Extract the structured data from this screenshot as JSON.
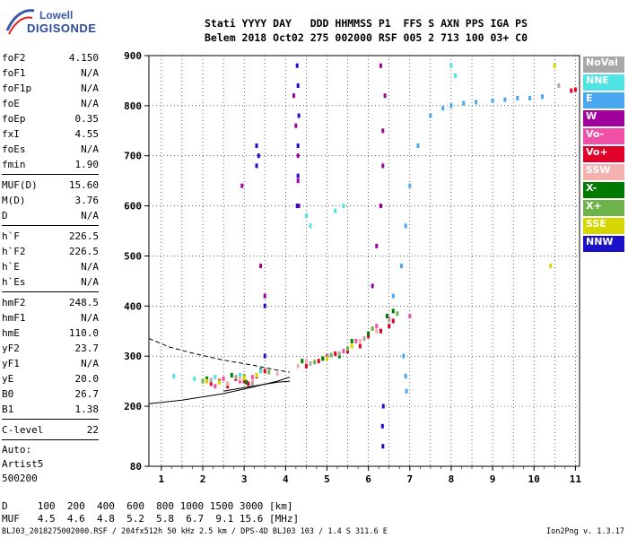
{
  "logo": {
    "line1": "Lowell",
    "line2": "DIGISONDE"
  },
  "header": {
    "row1": "Stati YYYY DAY   DDD HHMMSS P1  FFS S AXN PPS IGA PS",
    "row2": "Belem 2018 Oct02 275 002000 RSF 005 2 713 100 03+ C0"
  },
  "params": [
    {
      "key": "foF2",
      "val": "4.150"
    },
    {
      "key": "foF1",
      "val": "N/A"
    },
    {
      "key": "foF1p",
      "val": "N/A"
    },
    {
      "key": "foE",
      "val": "N/A"
    },
    {
      "key": "foEp",
      "val": "0.35"
    },
    {
      "key": "fxI",
      "val": "4.55"
    },
    {
      "key": "foEs",
      "val": "N/A"
    },
    {
      "key": "fmin",
      "val": "1.90"
    },
    {
      "key": "MUF(D)",
      "val": "15.60",
      "sep": true
    },
    {
      "key": "M(D)",
      "val": "3.76"
    },
    {
      "key": "D",
      "val": "N/A"
    },
    {
      "key": "h`F",
      "val": "226.5",
      "sep": true
    },
    {
      "key": "h`F2",
      "val": "226.5"
    },
    {
      "key": "h`E",
      "val": "N/A"
    },
    {
      "key": "h`Es",
      "val": "N/A"
    },
    {
      "key": "hmF2",
      "val": "248.5",
      "sep": true
    },
    {
      "key": "hmF1",
      "val": "N/A"
    },
    {
      "key": "hmE",
      "val": "110.0"
    },
    {
      "key": "yF2",
      "val": "23.7"
    },
    {
      "key": "yF1",
      "val": "N/A"
    },
    {
      "key": "yE",
      "val": "20.0"
    },
    {
      "key": "B0",
      "val": "26.7"
    },
    {
      "key": "B1",
      "val": "1.38"
    },
    {
      "key": "C-level",
      "val": "22",
      "sep": true
    }
  ],
  "auto": [
    "Auto:",
    "Artist5",
    "500200"
  ],
  "legend": [
    {
      "label": "NoVal",
      "color": "#a8a8a8"
    },
    {
      "label": "NNE",
      "color": "#4fe3e3"
    },
    {
      "label": "E",
      "color": "#4aa8f0"
    },
    {
      "label": "W",
      "color": "#a0009c"
    },
    {
      "label": "Vo-",
      "color": "#f04fa8"
    },
    {
      "label": "Vo+",
      "color": "#e0002a"
    },
    {
      "label": "SSW",
      "color": "#f5b0b0"
    },
    {
      "label": "X-",
      "color": "#007a00"
    },
    {
      "label": "X+",
      "color": "#6fb44a"
    },
    {
      "label": "SSE",
      "color": "#d6d600"
    },
    {
      "label": "NNW",
      "color": "#1a10c8"
    }
  ],
  "dmuf": {
    "row1": "D     100  200  400  600  800 1000 1500 3000 [km]",
    "row2": "MUF   4.5  4.6  4.8  5.2  5.8  6.7  9.1 15.6 [MHz]"
  },
  "footer": "BLJ03_2018275002000.RSF / 204fx512h 50 kHz 2.5 km / DPS-4D BLJ03 103 / 1.4 S 311.6 E",
  "version": "Ion2Png v. 1.3.17",
  "chart_data": {
    "type": "scatter",
    "xlim": [
      0.7,
      11.1
    ],
    "ylim": [
      80,
      900
    ],
    "x_ticks": [
      1,
      2,
      3,
      4,
      5,
      6,
      7,
      8,
      9,
      10,
      11
    ],
    "x_tick_labels": [
      "1",
      "2",
      "3",
      "4",
      "5",
      "6",
      "7",
      "8",
      "9",
      "10",
      "11"
    ],
    "y_ticks": [
      80,
      200,
      300,
      400,
      500,
      600,
      700,
      800,
      900
    ],
    "y_tick_labels": [
      "80",
      "200",
      "300",
      "400",
      "500",
      "600",
      "700",
      "800",
      "900"
    ],
    "grid": true,
    "curves": [
      {
        "name": "profile-solid",
        "style": "solid",
        "x": [
          0.7,
          1.5,
          2.5,
          3.2,
          3.8,
          4.1
        ],
        "y": [
          205,
          212,
          225,
          238,
          250,
          258
        ]
      },
      {
        "name": "profile-lower",
        "style": "solid",
        "x": [
          2.5,
          3.2,
          3.8,
          4.1
        ],
        "y": [
          230,
          240,
          248,
          250
        ]
      },
      {
        "name": "profile-dashed",
        "style": "dashed",
        "x": [
          0.7,
          1.2,
          1.8,
          2.5,
          3.2,
          3.8,
          4.1
        ],
        "y": [
          335,
          318,
          305,
          292,
          282,
          272,
          268
        ]
      }
    ],
    "series": [
      {
        "name": "W",
        "x": [
          4.2,
          4.25,
          4.3,
          4.3,
          4.32,
          2.95,
          3.4,
          3.5,
          6.1,
          6.2,
          6.3,
          6.35,
          6.35,
          6.4,
          6.3
        ],
        "y": [
          820,
          760,
          700,
          650,
          600,
          640,
          480,
          420,
          440,
          520,
          600,
          680,
          750,
          820,
          880
        ]
      },
      {
        "name": "NNW",
        "x": [
          4.28,
          4.3,
          4.32,
          4.3,
          4.3,
          4.28,
          3.3,
          3.35,
          3.3,
          6.35,
          6.36,
          6.34,
          3.5,
          3.5
        ],
        "y": [
          880,
          840,
          780,
          720,
          660,
          600,
          720,
          700,
          680,
          120,
          200,
          160,
          400,
          300
        ]
      },
      {
        "name": "Vo+",
        "x": [
          2.2,
          2.4,
          2.6,
          2.8,
          3.0,
          3.1,
          3.3,
          3.5,
          4.5,
          4.8,
          5.2,
          5.5,
          5.8,
          6.0,
          6.3,
          6.5,
          6.6,
          10.9,
          11.0
        ],
        "y": [
          245,
          250,
          240,
          255,
          250,
          245,
          260,
          270,
          280,
          290,
          305,
          310,
          320,
          340,
          350,
          360,
          370,
          830,
          832
        ]
      },
      {
        "name": "Vo-",
        "x": [
          2.3,
          2.5,
          2.9,
          3.2,
          4.6,
          5.0,
          5.4,
          5.7,
          6.2,
          6.5,
          7.0
        ],
        "y": [
          240,
          255,
          250,
          258,
          285,
          300,
          310,
          330,
          360,
          375,
          380
        ]
      },
      {
        "name": "X-",
        "x": [
          2.1,
          2.7,
          3.05,
          3.4,
          4.4,
          4.9,
          5.3,
          5.6,
          6.0,
          6.45,
          6.6
        ],
        "y": [
          255,
          262,
          248,
          272,
          290,
          295,
          300,
          330,
          345,
          380,
          390
        ]
      },
      {
        "name": "X+",
        "x": [
          2.0,
          2.6,
          3.0,
          3.6,
          4.7,
          5.1,
          5.5,
          5.9,
          6.1,
          6.7
        ],
        "y": [
          250,
          245,
          260,
          268,
          288,
          302,
          315,
          335,
          355,
          385
        ]
      },
      {
        "name": "E",
        "x": [
          6.6,
          6.8,
          6.9,
          7.0,
          7.2,
          7.5,
          7.8,
          8.0,
          8.3,
          8.6,
          9.0,
          9.3,
          9.6,
          9.9,
          10.2,
          6.85,
          6.9,
          6.92
        ],
        "y": [
          420,
          480,
          560,
          640,
          720,
          780,
          795,
          800,
          805,
          807,
          810,
          812,
          815,
          815,
          818,
          300,
          260,
          230
        ]
      },
      {
        "name": "NNE",
        "x": [
          1.3,
          1.8,
          2.3,
          2.9,
          3.4,
          4.5,
          4.6,
          5.2,
          5.4,
          8.0,
          8.1
        ],
        "y": [
          260,
          255,
          258,
          262,
          270,
          580,
          560,
          590,
          600,
          880,
          860
        ]
      },
      {
        "name": "SSW",
        "x": [
          2.6,
          2.9,
          3.2,
          3.8,
          4.3,
          4.5,
          5.8,
          6.2
        ],
        "y": [
          245,
          255,
          250,
          265,
          280,
          290,
          330,
          350
        ]
      },
      {
        "name": "SSE",
        "x": [
          2.1,
          2.4,
          3.0,
          3.3,
          5.0,
          5.6,
          10.4,
          10.5
        ],
        "y": [
          250,
          248,
          256,
          262,
          295,
          320,
          480,
          880
        ]
      },
      {
        "name": "NoVal",
        "x": [
          2.2,
          2.8,
          3.2,
          4.6,
          5.3,
          5.9,
          6.5,
          10.6
        ],
        "y": [
          252,
          258,
          245,
          285,
          305,
          335,
          372,
          840
        ]
      }
    ]
  }
}
